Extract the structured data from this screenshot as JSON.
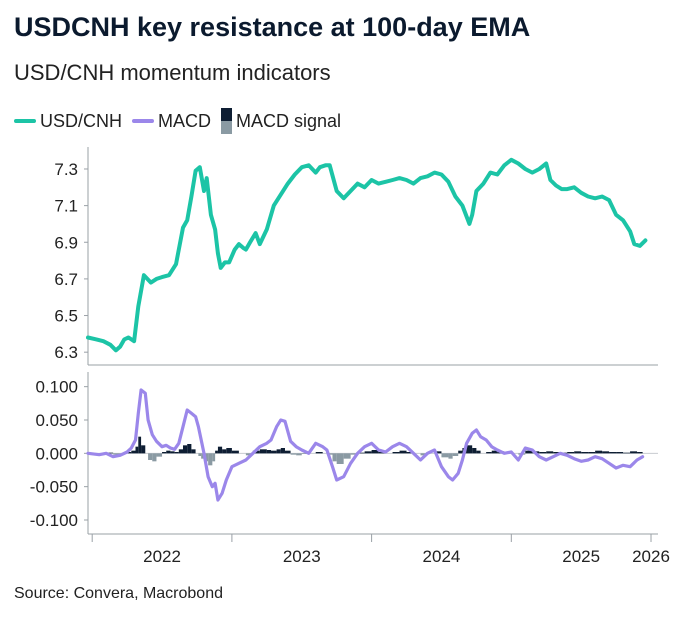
{
  "header": {
    "title": "USDCNH key resistance at 100-day EMA",
    "subtitle": "USD/CNH momentum indicators"
  },
  "source": "Source: Convera, Macrobond",
  "colors": {
    "usdcnh": "#1cc4a6",
    "macd": "#9b87ea",
    "signal_positive": "#0e1e33",
    "signal_negative": "#8a9aa3",
    "axis": "#9aa0a6"
  },
  "chart_data": [
    {
      "type": "line",
      "panel": "top",
      "title": "",
      "xlabel": "",
      "ylabel": "",
      "legend": [
        "USD/CNH",
        "MACD",
        "MACD signal"
      ],
      "legend_placement": "top-left",
      "grid": false,
      "x_ticks": [
        "2022",
        "2023",
        "2024",
        "2025",
        "2026"
      ],
      "y_ticks": [
        "6.3",
        "6.5",
        "6.7",
        "6.9",
        "7.1",
        "7.3"
      ],
      "xlim": [
        2021.97,
        2026.05
      ],
      "ylim": [
        6.23,
        7.42
      ],
      "series": [
        {
          "name": "USD/CNH",
          "x": [
            2021.97,
            2022.03,
            2022.08,
            2022.13,
            2022.17,
            2022.2,
            2022.23,
            2022.26,
            2022.3,
            2022.33,
            2022.37,
            2022.42,
            2022.46,
            2022.5,
            2022.55,
            2022.6,
            2022.65,
            2022.68,
            2022.71,
            2022.74,
            2022.77,
            2022.8,
            2022.82,
            2022.85,
            2022.88,
            2022.9,
            2022.92,
            2022.95,
            2022.98,
            2023.02,
            2023.05,
            2023.08,
            2023.1,
            2023.13,
            2023.17,
            2023.2,
            2023.25,
            2023.3,
            2023.35,
            2023.4,
            2023.45,
            2023.5,
            2023.55,
            2023.6,
            2023.63,
            2023.67,
            2023.7,
            2023.75,
            2023.8,
            2023.85,
            2023.9,
            2023.95,
            2024.0,
            2024.05,
            2024.1,
            2024.15,
            2024.2,
            2024.25,
            2024.3,
            2024.35,
            2024.4,
            2024.45,
            2024.5,
            2024.55,
            2024.6,
            2024.65,
            2024.7,
            2024.72,
            2024.75,
            2024.8,
            2024.85,
            2024.9,
            2024.95,
            2025.0,
            2025.05,
            2025.1,
            2025.15,
            2025.2,
            2025.25,
            2025.28,
            2025.32,
            2025.36,
            2025.4,
            2025.45,
            2025.5,
            2025.55,
            2025.6,
            2025.65,
            2025.7,
            2025.75,
            2025.8,
            2025.85,
            2025.88,
            2025.92,
            2025.96
          ],
          "values": [
            6.38,
            6.37,
            6.36,
            6.34,
            6.31,
            6.33,
            6.37,
            6.38,
            6.36,
            6.55,
            6.72,
            6.68,
            6.7,
            6.71,
            6.72,
            6.78,
            6.98,
            7.02,
            7.15,
            7.29,
            7.31,
            7.18,
            7.25,
            7.05,
            6.97,
            6.84,
            6.76,
            6.79,
            6.79,
            6.86,
            6.89,
            6.87,
            6.86,
            6.9,
            6.95,
            6.89,
            6.97,
            7.1,
            7.16,
            7.22,
            7.27,
            7.31,
            7.32,
            7.28,
            7.31,
            7.32,
            7.32,
            7.18,
            7.14,
            7.18,
            7.22,
            7.2,
            7.24,
            7.22,
            7.23,
            7.24,
            7.25,
            7.24,
            7.22,
            7.25,
            7.26,
            7.28,
            7.27,
            7.23,
            7.15,
            7.1,
            7.0,
            7.05,
            7.18,
            7.22,
            7.28,
            7.27,
            7.32,
            7.35,
            7.33,
            7.3,
            7.28,
            7.3,
            7.33,
            7.24,
            7.21,
            7.19,
            7.19,
            7.2,
            7.17,
            7.15,
            7.14,
            7.15,
            7.13,
            7.05,
            7.02,
            6.96,
            6.89,
            6.88,
            6.91
          ]
        }
      ]
    },
    {
      "type": "line",
      "panel": "bottom",
      "title": "",
      "xlabel": "",
      "ylabel": "",
      "grid": false,
      "x_ticks": [
        "2022",
        "2023",
        "2024",
        "2025",
        "2026"
      ],
      "y_ticks": [
        "0.100",
        "0.050",
        "0.000",
        "-0.050",
        "-0.100"
      ],
      "xlim": [
        2021.97,
        2026.05
      ],
      "ylim": [
        -0.118,
        0.122
      ],
      "series": [
        {
          "name": "MACD",
          "x": [
            2021.97,
            2022.05,
            2022.1,
            2022.15,
            2022.2,
            2022.25,
            2022.28,
            2022.31,
            2022.33,
            2022.35,
            2022.38,
            2022.4,
            2022.43,
            2022.46,
            2022.5,
            2022.53,
            2022.56,
            2022.59,
            2022.62,
            2022.65,
            2022.68,
            2022.71,
            2022.74,
            2022.76,
            2022.78,
            2022.8,
            2022.83,
            2022.86,
            2022.88,
            2022.9,
            2022.93,
            2022.96,
            2023.0,
            2023.05,
            2023.1,
            2023.15,
            2023.2,
            2023.25,
            2023.28,
            2023.32,
            2023.35,
            2023.38,
            2023.42,
            2023.46,
            2023.5,
            2023.55,
            2023.6,
            2023.65,
            2023.68,
            2023.72,
            2023.75,
            2023.8,
            2023.85,
            2023.9,
            2023.95,
            2024.0,
            2024.05,
            2024.1,
            2024.15,
            2024.2,
            2024.25,
            2024.3,
            2024.35,
            2024.4,
            2024.45,
            2024.5,
            2024.55,
            2024.58,
            2024.62,
            2024.65,
            2024.68,
            2024.72,
            2024.75,
            2024.78,
            2024.82,
            2024.86,
            2024.9,
            2024.95,
            2025.0,
            2025.05,
            2025.1,
            2025.15,
            2025.2,
            2025.25,
            2025.3,
            2025.35,
            2025.4,
            2025.45,
            2025.5,
            2025.55,
            2025.6,
            2025.65,
            2025.7,
            2025.75,
            2025.8,
            2025.85,
            2025.9,
            2025.94
          ],
          "values": [
            0.0,
            -0.002,
            0.0,
            -0.005,
            -0.003,
            0.002,
            0.008,
            0.02,
            0.06,
            0.095,
            0.09,
            0.05,
            0.028,
            0.018,
            0.01,
            0.012,
            0.008,
            0.006,
            0.015,
            0.04,
            0.065,
            0.06,
            0.055,
            0.04,
            0.02,
            0.0,
            -0.035,
            -0.05,
            -0.045,
            -0.07,
            -0.06,
            -0.04,
            -0.02,
            -0.015,
            -0.01,
            0.0,
            0.01,
            0.015,
            0.02,
            0.04,
            0.05,
            0.048,
            0.018,
            0.01,
            0.005,
            0.0,
            0.015,
            0.01,
            0.005,
            -0.02,
            -0.04,
            -0.035,
            -0.015,
            0.0,
            0.01,
            0.015,
            0.005,
            0.002,
            0.01,
            0.015,
            0.01,
            0.0,
            -0.01,
            0.0,
            0.005,
            -0.02,
            -0.035,
            -0.04,
            -0.03,
            -0.01,
            0.015,
            0.03,
            0.035,
            0.025,
            0.02,
            0.01,
            0.005,
            0.0,
            0.002,
            -0.01,
            0.008,
            0.005,
            -0.005,
            -0.01,
            -0.005,
            0.0,
            -0.003,
            -0.008,
            -0.012,
            -0.01,
            -0.005,
            -0.008,
            -0.015,
            -0.022,
            -0.018,
            -0.02,
            -0.01,
            -0.005
          ]
        },
        {
          "name": "MACD signal",
          "x": [
            2021.97,
            2022.05,
            2022.1,
            2022.15,
            2022.2,
            2022.25,
            2022.28,
            2022.31,
            2022.33,
            2022.35,
            2022.38,
            2022.4,
            2022.43,
            2022.46,
            2022.5,
            2022.53,
            2022.56,
            2022.59,
            2022.62,
            2022.65,
            2022.68,
            2022.71,
            2022.74,
            2022.76,
            2022.78,
            2022.8,
            2022.83,
            2022.86,
            2022.88,
            2022.9,
            2022.93,
            2022.96,
            2023.0,
            2023.05,
            2023.1,
            2023.15,
            2023.2,
            2023.25,
            2023.28,
            2023.32,
            2023.35,
            2023.38,
            2023.42,
            2023.46,
            2023.5,
            2023.55,
            2023.6,
            2023.65,
            2023.68,
            2023.72,
            2023.75,
            2023.8,
            2023.85,
            2023.9,
            2023.95,
            2024.0,
            2024.05,
            2024.1,
            2024.15,
            2024.2,
            2024.25,
            2024.3,
            2024.35,
            2024.4,
            2024.45,
            2024.5,
            2024.55,
            2024.58,
            2024.62,
            2024.65,
            2024.68,
            2024.72,
            2024.75,
            2024.78,
            2024.82,
            2024.86,
            2024.9,
            2024.95,
            2025.0,
            2025.05,
            2025.1,
            2025.15,
            2025.2,
            2025.25,
            2025.3,
            2025.35,
            2025.4,
            2025.45,
            2025.5,
            2025.55,
            2025.6,
            2025.65,
            2025.7,
            2025.75,
            2025.8,
            2025.85,
            2025.9,
            2025.94
          ],
          "values": [
            0.0,
            -0.001,
            0.001,
            -0.002,
            -0.001,
            0.002,
            0.004,
            0.01,
            0.025,
            0.012,
            0.0,
            -0.01,
            -0.012,
            -0.005,
            0.002,
            0.004,
            0.003,
            0.002,
            0.006,
            0.012,
            0.014,
            0.006,
            0.0,
            -0.004,
            -0.008,
            -0.012,
            -0.018,
            -0.012,
            0.004,
            0.01,
            0.006,
            0.008,
            0.004,
            0.0,
            -0.003,
            0.004,
            0.006,
            0.005,
            0.004,
            0.006,
            0.008,
            0.004,
            -0.002,
            -0.003,
            -0.001,
            0.0,
            0.002,
            0.0,
            -0.002,
            -0.012,
            -0.016,
            -0.008,
            -0.002,
            0.001,
            0.003,
            0.005,
            0.002,
            0.0,
            0.002,
            0.004,
            0.002,
            0.0,
            -0.003,
            0.0,
            0.003,
            -0.006,
            -0.008,
            -0.004,
            0.004,
            0.008,
            0.012,
            0.008,
            0.004,
            0.0,
            0.002,
            0.004,
            0.003,
            0.001,
            0.0,
            -0.002,
            0.004,
            0.003,
            0.002,
            0.003,
            0.002,
            0.001,
            0.002,
            0.003,
            0.002,
            0.002,
            0.004,
            0.003,
            0.002,
            0.002,
            0.001,
            0.003,
            0.002,
            0.002
          ]
        }
      ]
    }
  ]
}
